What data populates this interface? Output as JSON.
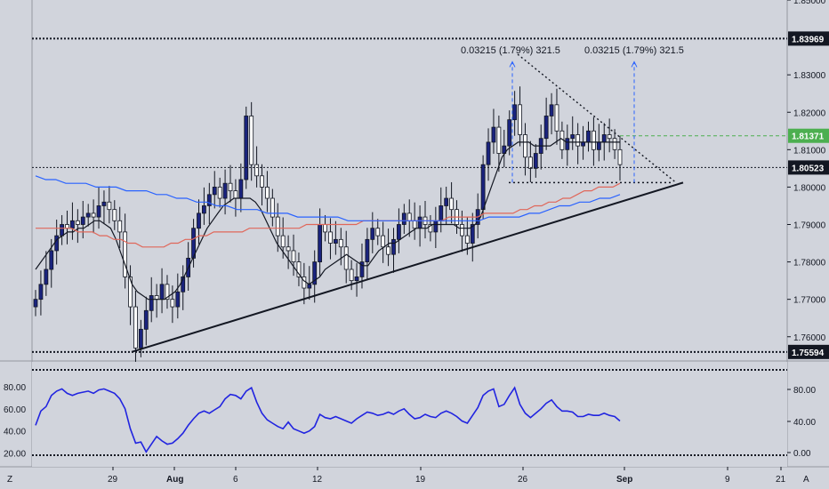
{
  "chart_data": [
    {
      "type": "candlestick",
      "title": "",
      "ylim": [
        1.754,
        1.85
      ],
      "y_ticks": [
        "1.85000",
        "1.83000",
        "1.82000",
        "1.81000",
        "1.80000",
        "1.79000",
        "1.78000",
        "1.77000",
        "1.76000"
      ],
      "x_ticks": [
        "29",
        "Aug",
        "6",
        "12",
        "19",
        "26",
        "Sep",
        "9",
        "21"
      ],
      "price_labels": [
        {
          "value": 1.83969,
          "label": "1.83969",
          "style": "dotted-line",
          "color": "#131722"
        },
        {
          "value": 1.81371,
          "label": "1.81371",
          "style": "green-dashed-line",
          "color": "#4caf50"
        },
        {
          "value": 1.80523,
          "label": "1.80523",
          "style": "dotted-line",
          "color": "#131722"
        },
        {
          "value": 1.75594,
          "label": "1.75594",
          "style": "dotted-line",
          "color": "#131722"
        }
      ],
      "annotations": [
        "0.03215 (1.79%) 321.5",
        "0.03215 (1.79%) 321.5"
      ],
      "close_series": [
        1.77,
        1.774,
        1.778,
        1.783,
        1.787,
        1.79,
        1.789,
        1.791,
        1.79,
        1.792,
        1.793,
        1.792,
        1.795,
        1.796,
        1.794,
        1.791,
        1.788,
        1.776,
        1.768,
        1.757,
        1.762,
        1.767,
        1.771,
        1.77,
        1.774,
        1.77,
        1.768,
        1.772,
        1.776,
        1.781,
        1.789,
        1.793,
        1.795,
        1.798,
        1.8,
        1.797,
        1.801,
        1.799,
        1.797,
        1.802,
        1.819,
        1.806,
        1.803,
        1.8,
        1.797,
        1.792,
        1.787,
        1.784,
        1.783,
        1.78,
        1.776,
        1.773,
        1.774,
        1.78,
        1.79,
        1.788,
        1.785,
        1.786,
        1.784,
        1.778,
        1.775,
        1.776,
        1.78,
        1.786,
        1.789,
        1.787,
        1.784,
        1.782,
        1.786,
        1.79,
        1.793,
        1.791,
        1.789,
        1.792,
        1.79,
        1.788,
        1.791,
        1.795,
        1.797,
        1.794,
        1.79,
        1.787,
        1.785,
        1.79,
        1.794,
        1.806,
        1.812,
        1.816,
        1.809,
        1.811,
        1.818,
        1.822,
        1.814,
        1.808,
        1.805,
        1.809,
        1.813,
        1.819,
        1.822,
        1.815,
        1.81,
        1.813,
        1.814,
        1.811,
        1.812,
        1.815,
        1.81,
        1.812,
        1.814,
        1.813,
        1.81,
        1.806
      ],
      "series": [
        {
          "name": "",
          "color": "#131722",
          "values": [
            1.778,
            1.78,
            1.782,
            1.784,
            1.786,
            1.787,
            1.788,
            1.788,
            1.789,
            1.789,
            1.79,
            1.791,
            1.791,
            1.79,
            1.789,
            1.786,
            1.782,
            1.778,
            1.774,
            1.772,
            1.771,
            1.77,
            1.77,
            1.77,
            1.77,
            1.771,
            1.772,
            1.774,
            1.777,
            1.78,
            1.783,
            1.786,
            1.789,
            1.791,
            1.793,
            1.795,
            1.796,
            1.797,
            1.797,
            1.797,
            1.797,
            1.796,
            1.794,
            1.791,
            1.788,
            1.785,
            1.783,
            1.781,
            1.779,
            1.777,
            1.775,
            1.774,
            1.775,
            1.776,
            1.778,
            1.779,
            1.78,
            1.781,
            1.782,
            1.781,
            1.78,
            1.779,
            1.779,
            1.781,
            1.783,
            1.784,
            1.785,
            1.785,
            1.786,
            1.787,
            1.788,
            1.789,
            1.789,
            1.789,
            1.79,
            1.79,
            1.79,
            1.79,
            1.79,
            1.789,
            1.789,
            1.789,
            1.79,
            1.792,
            1.796,
            1.8,
            1.804,
            1.808,
            1.81,
            1.811,
            1.812,
            1.812,
            1.812,
            1.811,
            1.811,
            1.811,
            1.811,
            1.812,
            1.813,
            1.812,
            1.812,
            1.812,
            1.812,
            1.812,
            1.812,
            1.812,
            1.812,
            1.812,
            1.812,
            1.812
          ]
        },
        {
          "name": "",
          "color": "#e0675a",
          "values": [
            1.789,
            1.789,
            1.789,
            1.789,
            1.789,
            1.789,
            1.788,
            1.788,
            1.788,
            1.787,
            1.787,
            1.786,
            1.786,
            1.785,
            1.785,
            1.784,
            1.784,
            1.784,
            1.784,
            1.785,
            1.785,
            1.786,
            1.786,
            1.787,
            1.787,
            1.788,
            1.788,
            1.788,
            1.788,
            1.788,
            1.789,
            1.789,
            1.789,
            1.789,
            1.789,
            1.789,
            1.789,
            1.789,
            1.79,
            1.79,
            1.79,
            1.79,
            1.79,
            1.79,
            1.79,
            1.79,
            1.791,
            1.791,
            1.791,
            1.791,
            1.791,
            1.791,
            1.791,
            1.791,
            1.791,
            1.791,
            1.791,
            1.791,
            1.792,
            1.792,
            1.792,
            1.792,
            1.792,
            1.793,
            1.793,
            1.793,
            1.793,
            1.793,
            1.794,
            1.794,
            1.795,
            1.795,
            1.796,
            1.796,
            1.797,
            1.797,
            1.798,
            1.799,
            1.799,
            1.8,
            1.8,
            1.8,
            1.801
          ]
        },
        {
          "name": "",
          "color": "#2962ff",
          "values": [
            1.803,
            1.802,
            1.802,
            1.801,
            1.801,
            1.801,
            1.8,
            1.8,
            1.8,
            1.799,
            1.799,
            1.799,
            1.798,
            1.798,
            1.797,
            1.797,
            1.796,
            1.796,
            1.795,
            1.795,
            1.794,
            1.794,
            1.794,
            1.793,
            1.793,
            1.793,
            1.792,
            1.792,
            1.792,
            1.792,
            1.792,
            1.791,
            1.791,
            1.791,
            1.791,
            1.791,
            1.791,
            1.791,
            1.791,
            1.791,
            1.791,
            1.791,
            1.791,
            1.791,
            1.791,
            1.792,
            1.792,
            1.792,
            1.792,
            1.793,
            1.793,
            1.794,
            1.795,
            1.795,
            1.796,
            1.796,
            1.797,
            1.797,
            1.798
          ]
        }
      ]
    },
    {
      "type": "line",
      "title": "",
      "ylim": [
        10,
        100
      ],
      "y_ticks": [
        "80.00",
        "60.00",
        "40.00",
        "20.00"
      ],
      "right_ticks": [
        "80.00",
        "40.00",
        "0.00"
      ],
      "series": [
        {
          "name": "",
          "color": "#2124e0",
          "values": [
            45,
            58,
            62,
            72,
            76,
            78,
            74,
            72,
            74,
            75,
            76,
            74,
            77,
            78,
            76,
            74,
            69,
            60,
            42,
            29,
            30,
            21,
            28,
            35,
            31,
            28,
            29,
            33,
            38,
            45,
            51,
            56,
            58,
            56,
            59,
            62,
            69,
            73,
            72,
            69,
            76,
            79,
            66,
            56,
            50,
            47,
            44,
            42,
            48,
            42,
            40,
            38,
            40,
            44,
            55,
            52,
            51,
            53,
            51,
            49,
            47,
            51,
            54,
            57,
            56,
            54,
            55,
            57,
            55,
            58,
            60,
            55,
            51,
            52,
            55,
            53,
            52,
            56,
            58,
            56,
            53,
            49,
            47,
            54,
            61,
            72,
            76,
            78,
            62,
            64,
            72,
            79,
            64,
            56,
            52,
            56,
            60,
            65,
            68,
            62,
            58,
            58,
            57,
            53,
            53,
            55,
            54,
            54,
            56,
            54,
            53,
            49
          ]
        }
      ]
    }
  ],
  "left_marker": "Z",
  "right_marker": "A"
}
